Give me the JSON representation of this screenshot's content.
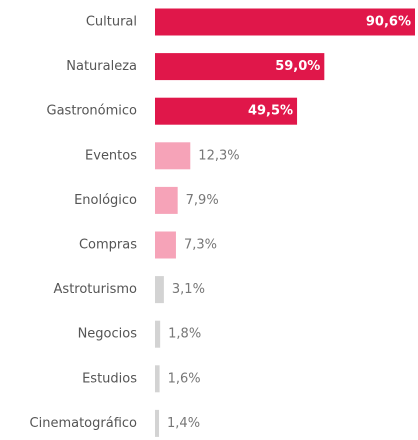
{
  "chart_data": {
    "type": "bar",
    "orientation": "horizontal",
    "categories": [
      "Cultural",
      "Naturaleza",
      "Gastronómico",
      "Eventos",
      "Enológico",
      "Compras",
      "Astroturismo",
      "Negocios",
      "Estudios",
      "Cinematográfico"
    ],
    "values": [
      90.6,
      59.0,
      49.5,
      12.3,
      7.9,
      7.3,
      3.1,
      1.8,
      1.6,
      1.4
    ],
    "value_labels": [
      "90,6%",
      "59,0%",
      "49,5%",
      "12,3%",
      "7,9%",
      "7,3%",
      "3,1%",
      "1,8%",
      "1,6%",
      "1,4%"
    ],
    "colors": [
      "#e0174a",
      "#e0174a",
      "#e0174a",
      "#f6a3b8",
      "#f6a3b8",
      "#f6a3b8",
      "#d3d3d3",
      "#d3d3d3",
      "#d3d3d3",
      "#d3d3d3"
    ]
  }
}
